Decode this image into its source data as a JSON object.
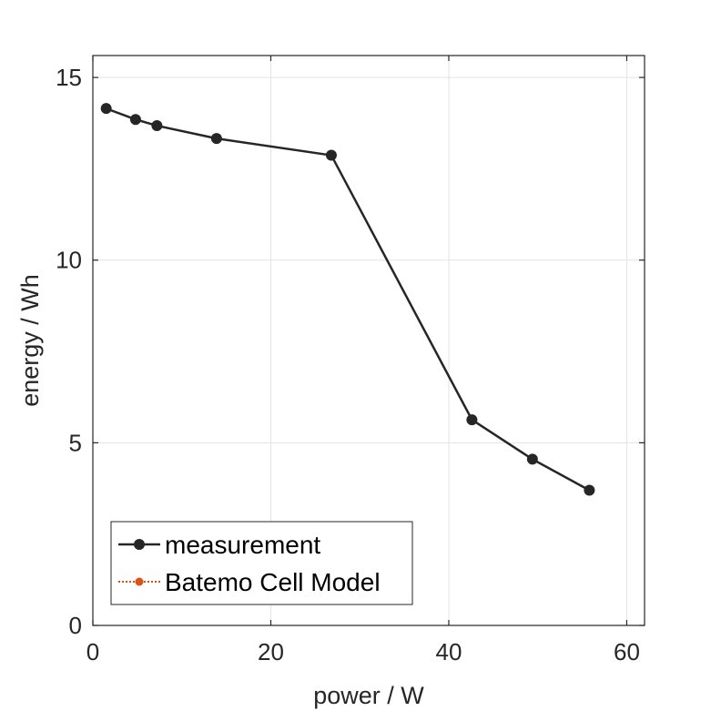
{
  "chart_data": {
    "type": "line",
    "xlabel": "power / W",
    "ylabel": "energy / Wh",
    "xlim": [
      0,
      62
    ],
    "ylim": [
      0,
      15.6
    ],
    "xticks": [
      0,
      20,
      40,
      60
    ],
    "yticks": [
      0,
      5,
      10,
      15
    ],
    "grid": true,
    "legend_position": "bottom-left",
    "series": [
      {
        "name": "measurement",
        "color": "#262626",
        "line_style": "solid",
        "marker": "circle",
        "x": [
          1.5,
          4.8,
          7.2,
          13.9,
          26.8,
          42.6,
          49.4,
          55.8
        ],
        "y": [
          14.15,
          13.85,
          13.68,
          13.33,
          12.87,
          5.63,
          4.55,
          3.7
        ]
      },
      {
        "name": "Batemo Cell Model",
        "color": "#d95319",
        "line_style": "dotted",
        "marker": "circle",
        "x": [],
        "y": []
      }
    ]
  }
}
